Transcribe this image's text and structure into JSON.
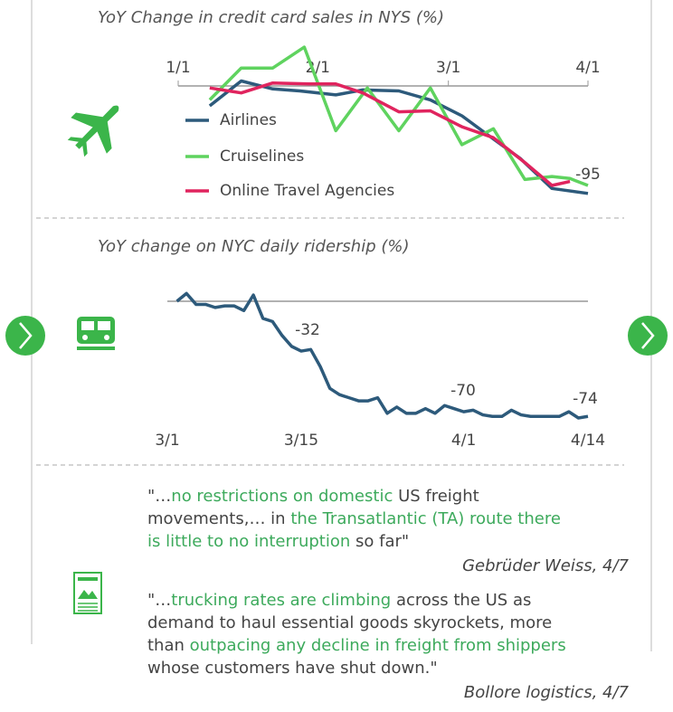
{
  "chart_data": [
    {
      "type": "line",
      "title": "YoY Change in credit card sales in NYS (%)",
      "ylim": [
        -110,
        45
      ],
      "xlim": [
        0,
        91
      ],
      "xticks": [
        {
          "value": 0,
          "label": "1/1"
        },
        {
          "value": 31,
          "label": "2/1"
        },
        {
          "value": 60,
          "label": "3/1"
        },
        {
          "value": 91,
          "label": "4/1"
        }
      ],
      "annotations": [
        "-95"
      ],
      "series": [
        {
          "name": "Airlines",
          "color": "#2d5a7b",
          "x": [
            7,
            14,
            21,
            27,
            35,
            41,
            49,
            56,
            63,
            69,
            76,
            83,
            91
          ],
          "values": [
            -20,
            5,
            -3,
            -5,
            -9,
            -4,
            -5,
            -14,
            -30,
            -50,
            -73,
            -103,
            -108
          ]
        },
        {
          "name": "Cruiselines",
          "color": "#5fd35f",
          "x": [
            7,
            14,
            21,
            28,
            35,
            42,
            49,
            56,
            63,
            70,
            77,
            83,
            87,
            91
          ],
          "values": [
            -14,
            18,
            18,
            39,
            -45,
            -2,
            -45,
            -2,
            -59,
            -43,
            -94,
            -91,
            -93,
            -100
          ]
        },
        {
          "name": "Online Travel Agencies",
          "color": "#e0245e",
          "x": [
            7,
            14,
            21,
            29,
            35,
            41,
            49,
            56,
            63,
            70,
            77,
            83,
            87
          ],
          "values": [
            -2,
            -7,
            3,
            2,
            2,
            -7,
            -26,
            -25,
            -41,
            -52,
            -77,
            -100,
            -96
          ]
        }
      ]
    },
    {
      "type": "line",
      "title": "YoY change on NYC daily ridership (%)",
      "ylim": [
        -80,
        10
      ],
      "xlim": [
        0,
        44
      ],
      "xticks": [
        {
          "value": 0,
          "label": "3/1"
        },
        {
          "value": 14,
          "label": "3/15"
        },
        {
          "value": 31,
          "label": "4/1"
        },
        {
          "value": 44,
          "label": "4/14"
        }
      ],
      "annotations": [
        "-32",
        "-70",
        "-74"
      ],
      "series": [
        {
          "color": "#2d5a7b",
          "x": [
            1,
            2,
            3,
            4,
            5,
            6,
            7,
            8,
            9,
            10,
            11,
            12,
            13,
            14,
            15,
            16,
            17,
            18,
            19,
            20,
            21,
            22,
            23,
            24,
            25,
            26,
            27,
            28,
            29,
            30,
            31,
            32,
            33,
            34,
            35,
            36,
            37,
            38,
            39,
            40,
            41,
            42,
            43,
            44
          ],
          "values": [
            0,
            5,
            -2,
            -2,
            -4,
            -3,
            -3,
            -6,
            4,
            -11,
            -13,
            -22,
            -29,
            -32,
            -31,
            -42,
            -56,
            -60,
            -62,
            -64,
            -64,
            -62,
            -72,
            -68,
            -72,
            -72,
            -69,
            -72,
            -67,
            -69,
            -71,
            -70,
            -73,
            -74,
            -74,
            -70,
            -73,
            -74,
            -74,
            -74,
            -74,
            -71,
            -75,
            -74
          ]
        }
      ]
    }
  ],
  "quotes": [
    {
      "segments": [
        {
          "text": "\"…",
          "highlight": false
        },
        {
          "text": "no restrictions on domestic",
          "highlight": true
        },
        {
          "text": " US freight movements,… in ",
          "highlight": false
        },
        {
          "text": "the Transatlantic (TA) route there is little to no interruption",
          "highlight": true
        },
        {
          "text": " so far\"",
          "highlight": false
        }
      ],
      "source": "Gebrüder Weiss, 4/7"
    },
    {
      "segments": [
        {
          "text": "\"…",
          "highlight": false
        },
        {
          "text": "trucking rates are climbing",
          "highlight": true
        },
        {
          "text": " across the US as demand to haul essential goods skyrockets, more than ",
          "highlight": false
        },
        {
          "text": "outpacing any decline in freight from shippers",
          "highlight": true
        },
        {
          "text": " whose customers have shut down.\"",
          "highlight": false
        }
      ],
      "source": "Bollore logistics, 4/7"
    }
  ]
}
